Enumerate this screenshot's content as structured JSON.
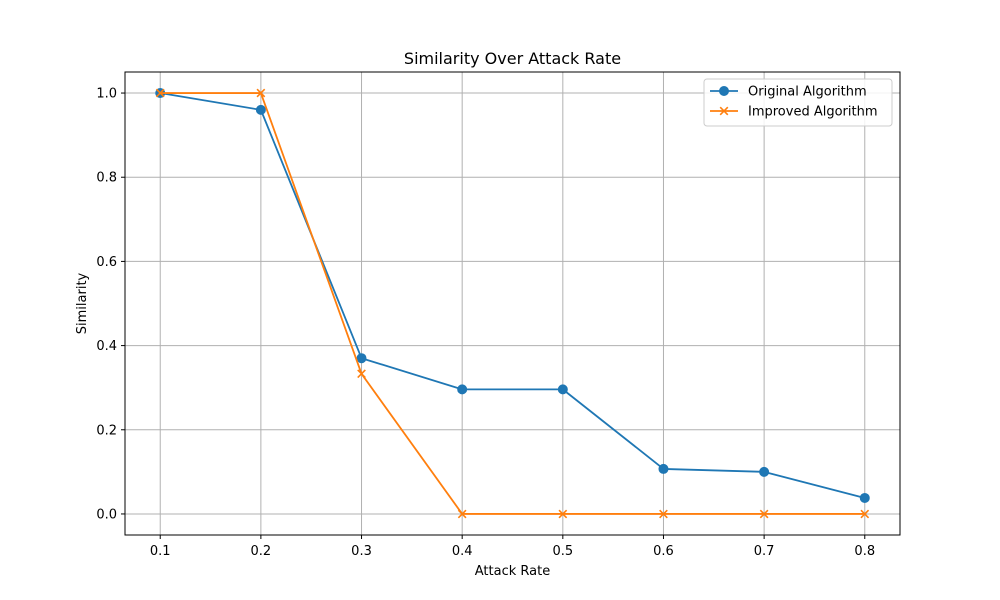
{
  "chart_data": {
    "type": "line",
    "title": "Similarity Over Attack Rate",
    "xlabel": "Attack Rate",
    "ylabel": "Similarity",
    "x": [
      0.1,
      0.2,
      0.3,
      0.4,
      0.5,
      0.6,
      0.7,
      0.8
    ],
    "x_tick_labels": [
      "0.1",
      "0.2",
      "0.3",
      "0.4",
      "0.5",
      "0.6",
      "0.7",
      "0.8"
    ],
    "y_ticks": [
      0.0,
      0.2,
      0.4,
      0.6,
      0.8,
      1.0
    ],
    "y_tick_labels": [
      "0.0",
      "0.2",
      "0.4",
      "0.6",
      "0.8",
      "1.0"
    ],
    "xlim": [
      0.065,
      0.835
    ],
    "ylim": [
      -0.05,
      1.05
    ],
    "grid": true,
    "legend_position": "top-right",
    "series": [
      {
        "name": "Original Algorithm",
        "marker": "circle",
        "color": "#1f77b4",
        "values": [
          1.0,
          0.96,
          0.37,
          0.296,
          0.296,
          0.107,
          0.1,
          0.038
        ]
      },
      {
        "name": "Improved Algorithm",
        "marker": "x",
        "color": "#ff7f0e",
        "values": [
          1.0,
          1.0,
          0.333,
          0.0,
          0.0,
          0.0,
          0.0,
          0.0
        ]
      }
    ]
  }
}
